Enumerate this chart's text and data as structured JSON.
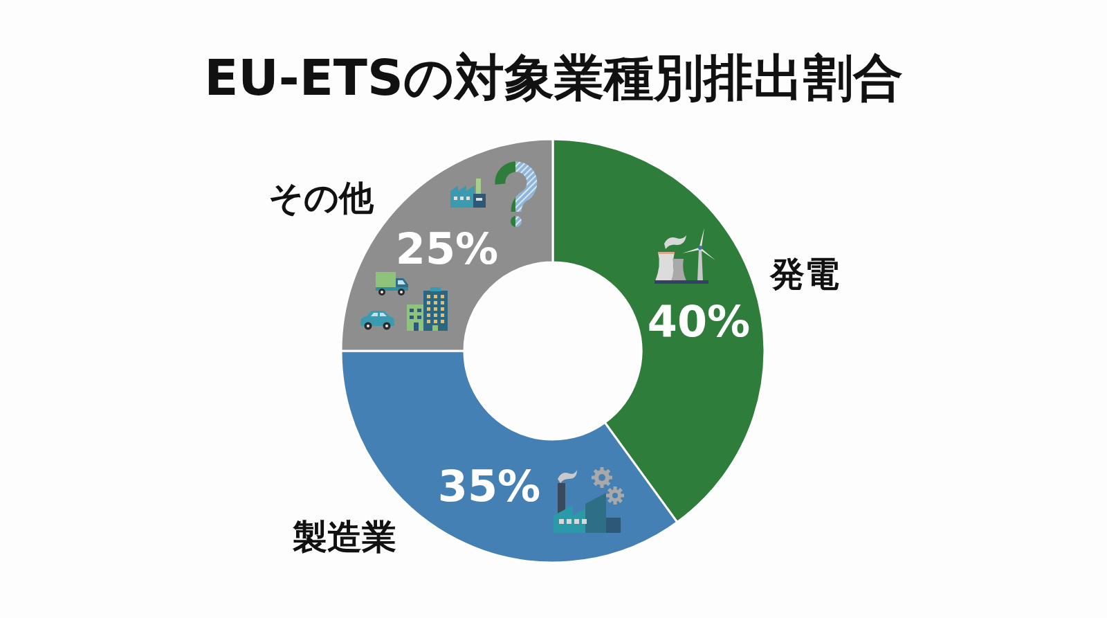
{
  "chart_data": {
    "type": "donut",
    "title": "EU-ETSの対象業種別排出割合",
    "categories": [
      "発電",
      "製造業",
      "その他"
    ],
    "values": [
      40,
      35,
      25
    ],
    "colors": [
      "#2e7d3a",
      "#4580b5",
      "#8e8e8e"
    ],
    "value_labels": [
      "40%",
      "35%",
      "25%"
    ]
  }
}
